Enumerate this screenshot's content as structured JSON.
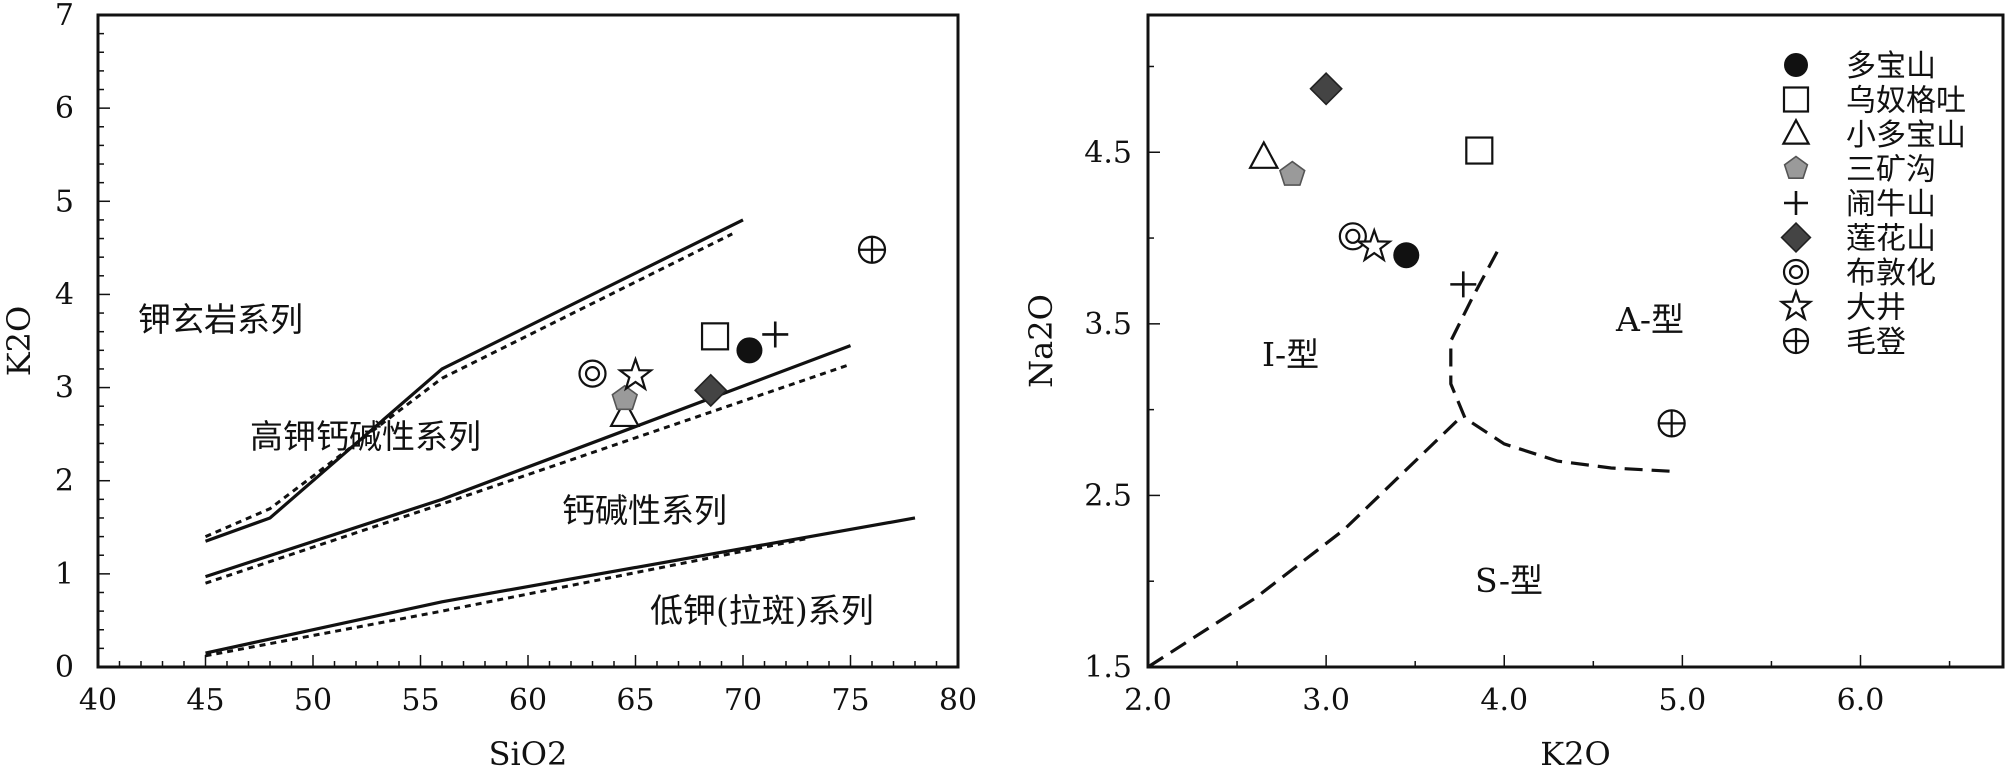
{
  "chart_data": [
    {
      "type": "scatter",
      "xlabel": "SiO2",
      "ylabel": "K2O",
      "xlim": [
        40,
        80
      ],
      "ylim": [
        0,
        7
      ],
      "xticks": [
        "40",
        "45",
        "50",
        "55",
        "60",
        "65",
        "70",
        "75",
        "80"
      ],
      "yticks": [
        "0",
        "1",
        "2",
        "3",
        "4",
        "5",
        "6",
        "7"
      ],
      "region_labels": [
        "钾玄岩系列",
        "高钾钙碱性系列",
        "钙碱性系列",
        "低钾(拉斑)系列"
      ],
      "boundaries": [
        {
          "style": "solid",
          "points": [
            [
              45,
              1.35
            ],
            [
              48,
              1.6
            ],
            [
              56,
              3.2
            ],
            [
              70,
              4.8
            ]
          ]
        },
        {
          "style": "dotted",
          "points": [
            [
              45,
              1.4
            ],
            [
              48,
              1.7
            ],
            [
              56,
              3.1
            ],
            [
              69.5,
              4.65
            ]
          ]
        },
        {
          "style": "solid",
          "points": [
            [
              45,
              0.97
            ],
            [
              56,
              1.8
            ],
            [
              75,
              3.45
            ]
          ]
        },
        {
          "style": "dotted",
          "points": [
            [
              45,
              0.9
            ],
            [
              56,
              1.75
            ],
            [
              75,
              3.25
            ]
          ]
        },
        {
          "style": "solid",
          "points": [
            [
              45,
              0.15
            ],
            [
              56,
              0.7
            ],
            [
              78,
              1.6
            ]
          ]
        },
        {
          "style": "dotted",
          "points": [
            [
              45,
              0.12
            ],
            [
              56,
              0.6
            ],
            [
              73,
              1.38
            ]
          ]
        }
      ],
      "series": [
        {
          "name": "多宝山",
          "marker": "filled-circle",
          "x": [
            70.3
          ],
          "y": [
            3.4
          ]
        },
        {
          "name": "乌奴格吐",
          "marker": "open-square",
          "x": [
            68.7
          ],
          "y": [
            3.55
          ]
        },
        {
          "name": "小多宝山",
          "marker": "open-triangle",
          "x": [
            64.5
          ],
          "y": [
            2.7
          ]
        },
        {
          "name": "三矿沟",
          "marker": "gray-pentagon",
          "x": [
            64.5
          ],
          "y": [
            2.88
          ]
        },
        {
          "name": "闹牛山",
          "marker": "plus",
          "x": [
            71.5
          ],
          "y": [
            3.57
          ]
        },
        {
          "name": "莲花山",
          "marker": "dark-diamond",
          "x": [
            68.5
          ],
          "y": [
            2.97
          ]
        },
        {
          "name": "布敦化",
          "marker": "double-circle",
          "x": [
            63.0
          ],
          "y": [
            3.15
          ]
        },
        {
          "name": "大井",
          "marker": "open-star",
          "x": [
            65.0
          ],
          "y": [
            3.13
          ]
        },
        {
          "name": "毛登",
          "marker": "circle-plus",
          "x": [
            76.0
          ],
          "y": [
            4.48
          ]
        }
      ]
    },
    {
      "type": "scatter",
      "xlabel": "K2O",
      "ylabel": "Na2O",
      "xlim": [
        2.0,
        6.8
      ],
      "ylim": [
        1.5,
        5.3
      ],
      "xticks": [
        "2.0",
        "3.0",
        "4.0",
        "5.0",
        "6.0"
      ],
      "yticks": [
        "1.5",
        "2.5",
        "3.5",
        "4.5"
      ],
      "region_labels": [
        "I-型",
        "A-型",
        "S-型"
      ],
      "boundaries": [
        {
          "style": "dashed",
          "points": [
            [
              2.0,
              1.5
            ],
            [
              2.6,
              1.9
            ],
            [
              3.1,
              2.3
            ],
            [
              3.5,
              2.7
            ],
            [
              3.75,
              2.95
            ]
          ]
        },
        {
          "style": "dashed",
          "points": [
            [
              3.96,
              3.92
            ],
            [
              3.82,
              3.65
            ],
            [
              3.7,
              3.4
            ],
            [
              3.7,
              3.15
            ],
            [
              3.78,
              2.95
            ],
            [
              4.0,
              2.8
            ],
            [
              4.3,
              2.7
            ],
            [
              4.6,
              2.66
            ],
            [
              4.95,
              2.64
            ]
          ]
        }
      ],
      "legend_position": "top-right",
      "series": [
        {
          "name": "多宝山",
          "marker": "filled-circle",
          "x": [
            3.45
          ],
          "y": [
            3.9
          ]
        },
        {
          "name": "乌奴格吐",
          "marker": "open-square",
          "x": [
            3.86
          ],
          "y": [
            4.51
          ]
        },
        {
          "name": "小多宝山",
          "marker": "open-triangle",
          "x": [
            2.65
          ],
          "y": [
            4.47
          ]
        },
        {
          "name": "三矿沟",
          "marker": "gray-pentagon",
          "x": [
            2.81
          ],
          "y": [
            4.37
          ]
        },
        {
          "name": "闹牛山",
          "marker": "plus",
          "x": [
            3.77
          ],
          "y": [
            3.73
          ]
        },
        {
          "name": "莲花山",
          "marker": "dark-diamond",
          "x": [
            3.0
          ],
          "y": [
            4.87
          ]
        },
        {
          "name": "布敦化",
          "marker": "double-circle",
          "x": [
            3.15
          ],
          "y": [
            4.01
          ]
        },
        {
          "name": "大井",
          "marker": "open-star",
          "x": [
            3.27
          ],
          "y": [
            3.95
          ]
        },
        {
          "name": "毛登",
          "marker": "circle-plus",
          "x": [
            4.94
          ],
          "y": [
            2.92
          ]
        }
      ]
    }
  ]
}
